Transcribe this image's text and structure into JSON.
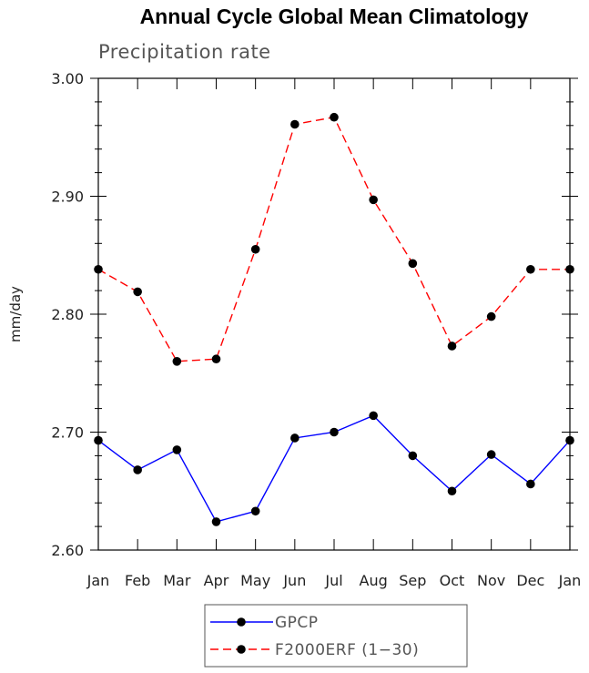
{
  "chart_data": {
    "type": "line",
    "title": "Annual Cycle Global Mean Climatology",
    "subtitle": "Precipitation rate",
    "xlabel": "",
    "ylabel": "mm/day",
    "categories": [
      "Jan",
      "Feb",
      "Mar",
      "Apr",
      "May",
      "Jun",
      "Jul",
      "Aug",
      "Sep",
      "Oct",
      "Nov",
      "Dec",
      "Jan"
    ],
    "ylim": [
      2.6,
      3.0
    ],
    "yticks": [
      2.6,
      2.7,
      2.8,
      2.9,
      3.0
    ],
    "ytick_labels": [
      "2.60",
      "2.70",
      "2.80",
      "2.90",
      "3.00"
    ],
    "grid": false,
    "legend_position": "bottom-center",
    "series": [
      {
        "name": "GPCP",
        "color": "#0000ff",
        "dash": "solid",
        "values": [
          2.693,
          2.668,
          2.685,
          2.624,
          2.633,
          2.695,
          2.7,
          2.714,
          2.68,
          2.65,
          2.681,
          2.656,
          2.693
        ]
      },
      {
        "name": "F2000ERF (1-30)",
        "label": "F2000ERF (1−30)",
        "color": "#ff0000",
        "dash": "dashed",
        "values": [
          2.838,
          2.819,
          2.76,
          2.762,
          2.855,
          2.961,
          2.967,
          2.897,
          2.843,
          2.773,
          2.798,
          2.838,
          2.838
        ]
      }
    ]
  }
}
